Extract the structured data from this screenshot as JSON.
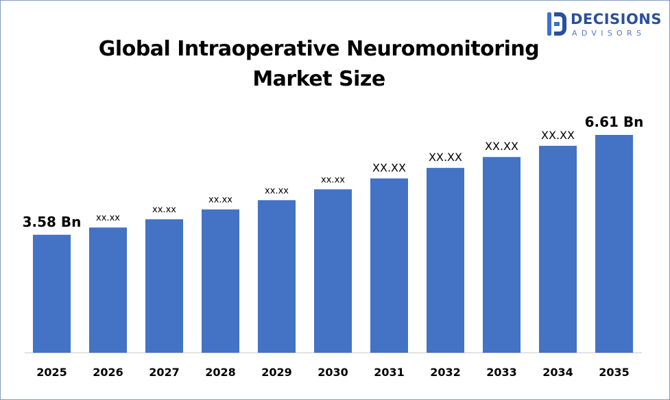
{
  "header": {
    "title_line1": "Global Intraoperative Neuromonitoring",
    "title_line2": "Market Size"
  },
  "logo": {
    "name_line1": "DECISIONS",
    "name_line2": "ADVISORS",
    "icon": "decisions-advisors-logo-icon",
    "colors": {
      "primary": "#2a4f9e",
      "accent": "#3d6fd0"
    }
  },
  "chart_data": {
    "type": "bar",
    "title": "Global Intraoperative Neuromonitoring Market Size",
    "categories": [
      "2025",
      "2026",
      "2027",
      "2028",
      "2029",
      "2030",
      "2031",
      "2032",
      "2033",
      "2034",
      "2035"
    ],
    "values": [
      3.58,
      3.8,
      4.05,
      4.35,
      4.63,
      4.96,
      5.29,
      5.61,
      5.94,
      6.28,
      6.61
    ],
    "data_labels": [
      "3.58 Bn",
      "xx.xx",
      "xx.xx",
      "xx.xx",
      "xx.xx",
      "xx.xx",
      "XX.XX",
      "XX.XX",
      "XX.XX",
      "XX.XX",
      "6.61 Bn"
    ],
    "bar_color": "#4472c4",
    "ylim": [
      0,
      7.0
    ],
    "grid": false,
    "legend": "none",
    "xlabel": "",
    "ylabel": ""
  }
}
